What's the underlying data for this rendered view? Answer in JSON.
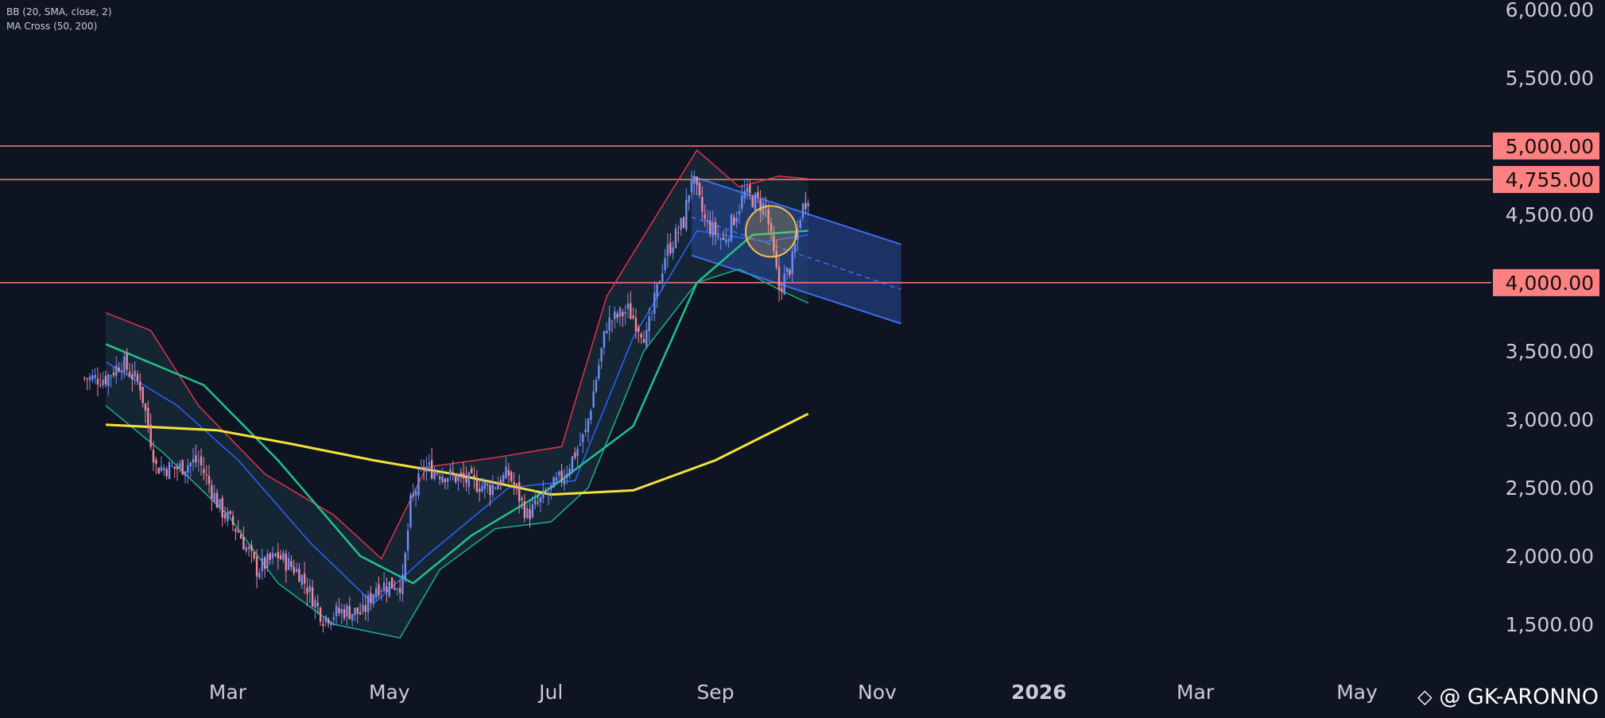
{
  "indicators": {
    "bb": "BB (20, SMA, close, 2)",
    "ma_cross": "MA Cross (50, 200)"
  },
  "watermark": "@ GK-ARONNO",
  "colors": {
    "background": "#0e1422",
    "candle_up": "#6f8ff7",
    "candle_down": "#f08aa0",
    "bb_upper": "#e2324a",
    "bb_lower": "#1bb08c",
    "bb_basis": "#2962ff",
    "bb_fill": "#1a2b3a",
    "ma50": "#22c28a",
    "ma200": "#f2e33b",
    "hline": "#ff7a7a",
    "hline_label_bg": "#ff8080",
    "channel_fill": "#2a4a9a",
    "channel_line": "#3d6cf0",
    "circle": "#f5c04a",
    "axis_text": "#c8ccd6"
  },
  "chart_data": {
    "type": "candlestick",
    "x_ticks": [
      "Mar",
      "May",
      "Jul",
      "Sep",
      "Nov",
      "2026",
      "Mar",
      "May"
    ],
    "y_ticks": [
      "1,500.00",
      "2,000.00",
      "2,500.00",
      "3,000.00",
      "3,500.00",
      "4,000.00",
      "4,500.00",
      "5,000.00",
      "5,500.00",
      "6,000.00"
    ],
    "ylim": [
      1250,
      6000
    ],
    "horizontal_lines": [
      {
        "value": 5000,
        "label": "5,000.00"
      },
      {
        "value": 4755,
        "label": "4,755.00"
      },
      {
        "value": 4000,
        "label": "4,000.00"
      }
    ],
    "close_path": [
      [
        "2025-01-14",
        3300
      ],
      [
        "2025-01-20",
        3420
      ],
      [
        "2025-01-27",
        3250
      ],
      [
        "2025-02-02",
        2650
      ],
      [
        "2025-02-10",
        2640
      ],
      [
        "2025-02-18",
        2700
      ],
      [
        "2025-02-26",
        2350
      ],
      [
        "2025-03-05",
        2180
      ],
      [
        "2025-03-12",
        1900
      ],
      [
        "2025-03-20",
        2000
      ],
      [
        "2025-03-28",
        1880
      ],
      [
        "2025-04-06",
        1550
      ],
      [
        "2025-04-14",
        1600
      ],
      [
        "2025-04-21",
        1580
      ],
      [
        "2025-04-26",
        1780
      ],
      [
        "2025-05-06",
        1800
      ],
      [
        "2025-05-09",
        2380
      ],
      [
        "2025-05-14",
        2650
      ],
      [
        "2025-05-22",
        2600
      ],
      [
        "2025-05-30",
        2550
      ],
      [
        "2025-06-08",
        2500
      ],
      [
        "2025-06-15",
        2600
      ],
      [
        "2025-06-22",
        2300
      ],
      [
        "2025-06-28",
        2420
      ],
      [
        "2025-07-06",
        2600
      ],
      [
        "2025-07-14",
        2900
      ],
      [
        "2025-07-22",
        3700
      ],
      [
        "2025-07-30",
        3800
      ],
      [
        "2025-08-06",
        3600
      ],
      [
        "2025-08-13",
        4200
      ],
      [
        "2025-08-20",
        4450
      ],
      [
        "2025-08-23",
        4780
      ],
      [
        "2025-08-28",
        4450
      ],
      [
        "2025-09-04",
        4300
      ],
      [
        "2025-09-12",
        4650
      ],
      [
        "2025-09-20",
        4550
      ],
      [
        "2025-09-25",
        3950
      ],
      [
        "2025-09-30",
        4150
      ],
      [
        "2025-10-03",
        4500
      ],
      [
        "2025-10-06",
        4650
      ]
    ],
    "bb_upper": [
      [
        "2025-01-14",
        3780
      ],
      [
        "2025-01-31",
        3650
      ],
      [
        "2025-02-18",
        3100
      ],
      [
        "2025-03-15",
        2600
      ],
      [
        "2025-04-10",
        2300
      ],
      [
        "2025-04-28",
        1980
      ],
      [
        "2025-05-15",
        2650
      ],
      [
        "2025-06-10",
        2720
      ],
      [
        "2025-07-05",
        2800
      ],
      [
        "2025-07-22",
        3900
      ],
      [
        "2025-08-10",
        4500
      ],
      [
        "2025-08-25",
        4970
      ],
      [
        "2025-09-10",
        4700
      ],
      [
        "2025-09-25",
        4780
      ],
      [
        "2025-10-06",
        4760
      ]
    ],
    "bb_lower": [
      [
        "2025-01-14",
        3100
      ],
      [
        "2025-02-05",
        2750
      ],
      [
        "2025-03-01",
        2300
      ],
      [
        "2025-03-20",
        1800
      ],
      [
        "2025-04-10",
        1500
      ],
      [
        "2025-05-05",
        1400
      ],
      [
        "2025-05-20",
        1900
      ],
      [
        "2025-06-10",
        2200
      ],
      [
        "2025-07-01",
        2250
      ],
      [
        "2025-07-15",
        2500
      ],
      [
        "2025-08-05",
        3500
      ],
      [
        "2025-08-25",
        4000
      ],
      [
        "2025-09-10",
        4100
      ],
      [
        "2025-09-25",
        3950
      ],
      [
        "2025-10-06",
        3850
      ]
    ],
    "bb_basis": [
      [
        "2025-01-14",
        3420
      ],
      [
        "2025-02-10",
        3100
      ],
      [
        "2025-03-05",
        2700
      ],
      [
        "2025-04-01",
        2100
      ],
      [
        "2025-04-25",
        1650
      ],
      [
        "2025-05-15",
        2000
      ],
      [
        "2025-06-15",
        2500
      ],
      [
        "2025-07-10",
        2550
      ],
      [
        "2025-08-01",
        3600
      ],
      [
        "2025-08-25",
        4380
      ],
      [
        "2025-09-20",
        4300
      ],
      [
        "2025-10-06",
        4350
      ]
    ],
    "ma50": [
      [
        "2025-01-14",
        3550
      ],
      [
        "2025-02-20",
        3250
      ],
      [
        "2025-03-20",
        2700
      ],
      [
        "2025-04-20",
        2000
      ],
      [
        "2025-05-10",
        1800
      ],
      [
        "2025-06-01",
        2150
      ],
      [
        "2025-07-01",
        2500
      ],
      [
        "2025-08-01",
        2950
      ],
      [
        "2025-08-25",
        4000
      ],
      [
        "2025-09-15",
        4350
      ],
      [
        "2025-10-06",
        4380
      ]
    ],
    "ma200": [
      [
        "2025-01-14",
        2960
      ],
      [
        "2025-02-25",
        2920
      ],
      [
        "2025-03-25",
        2820
      ],
      [
        "2025-04-25",
        2700
      ],
      [
        "2025-05-25",
        2600
      ],
      [
        "2025-07-01",
        2450
      ],
      [
        "2025-08-01",
        2480
      ],
      [
        "2025-09-01",
        2700
      ],
      [
        "2025-10-06",
        3040
      ]
    ],
    "regression_channel": {
      "start": "2025-08-23",
      "end": "2025-11-10",
      "upper": [
        4780,
        4280
      ],
      "mid": [
        4480,
        3950
      ],
      "lower": [
        4200,
        3700
      ]
    },
    "highlight_circle": {
      "center_date": "2025-09-22",
      "center_value": 4375
    }
  }
}
